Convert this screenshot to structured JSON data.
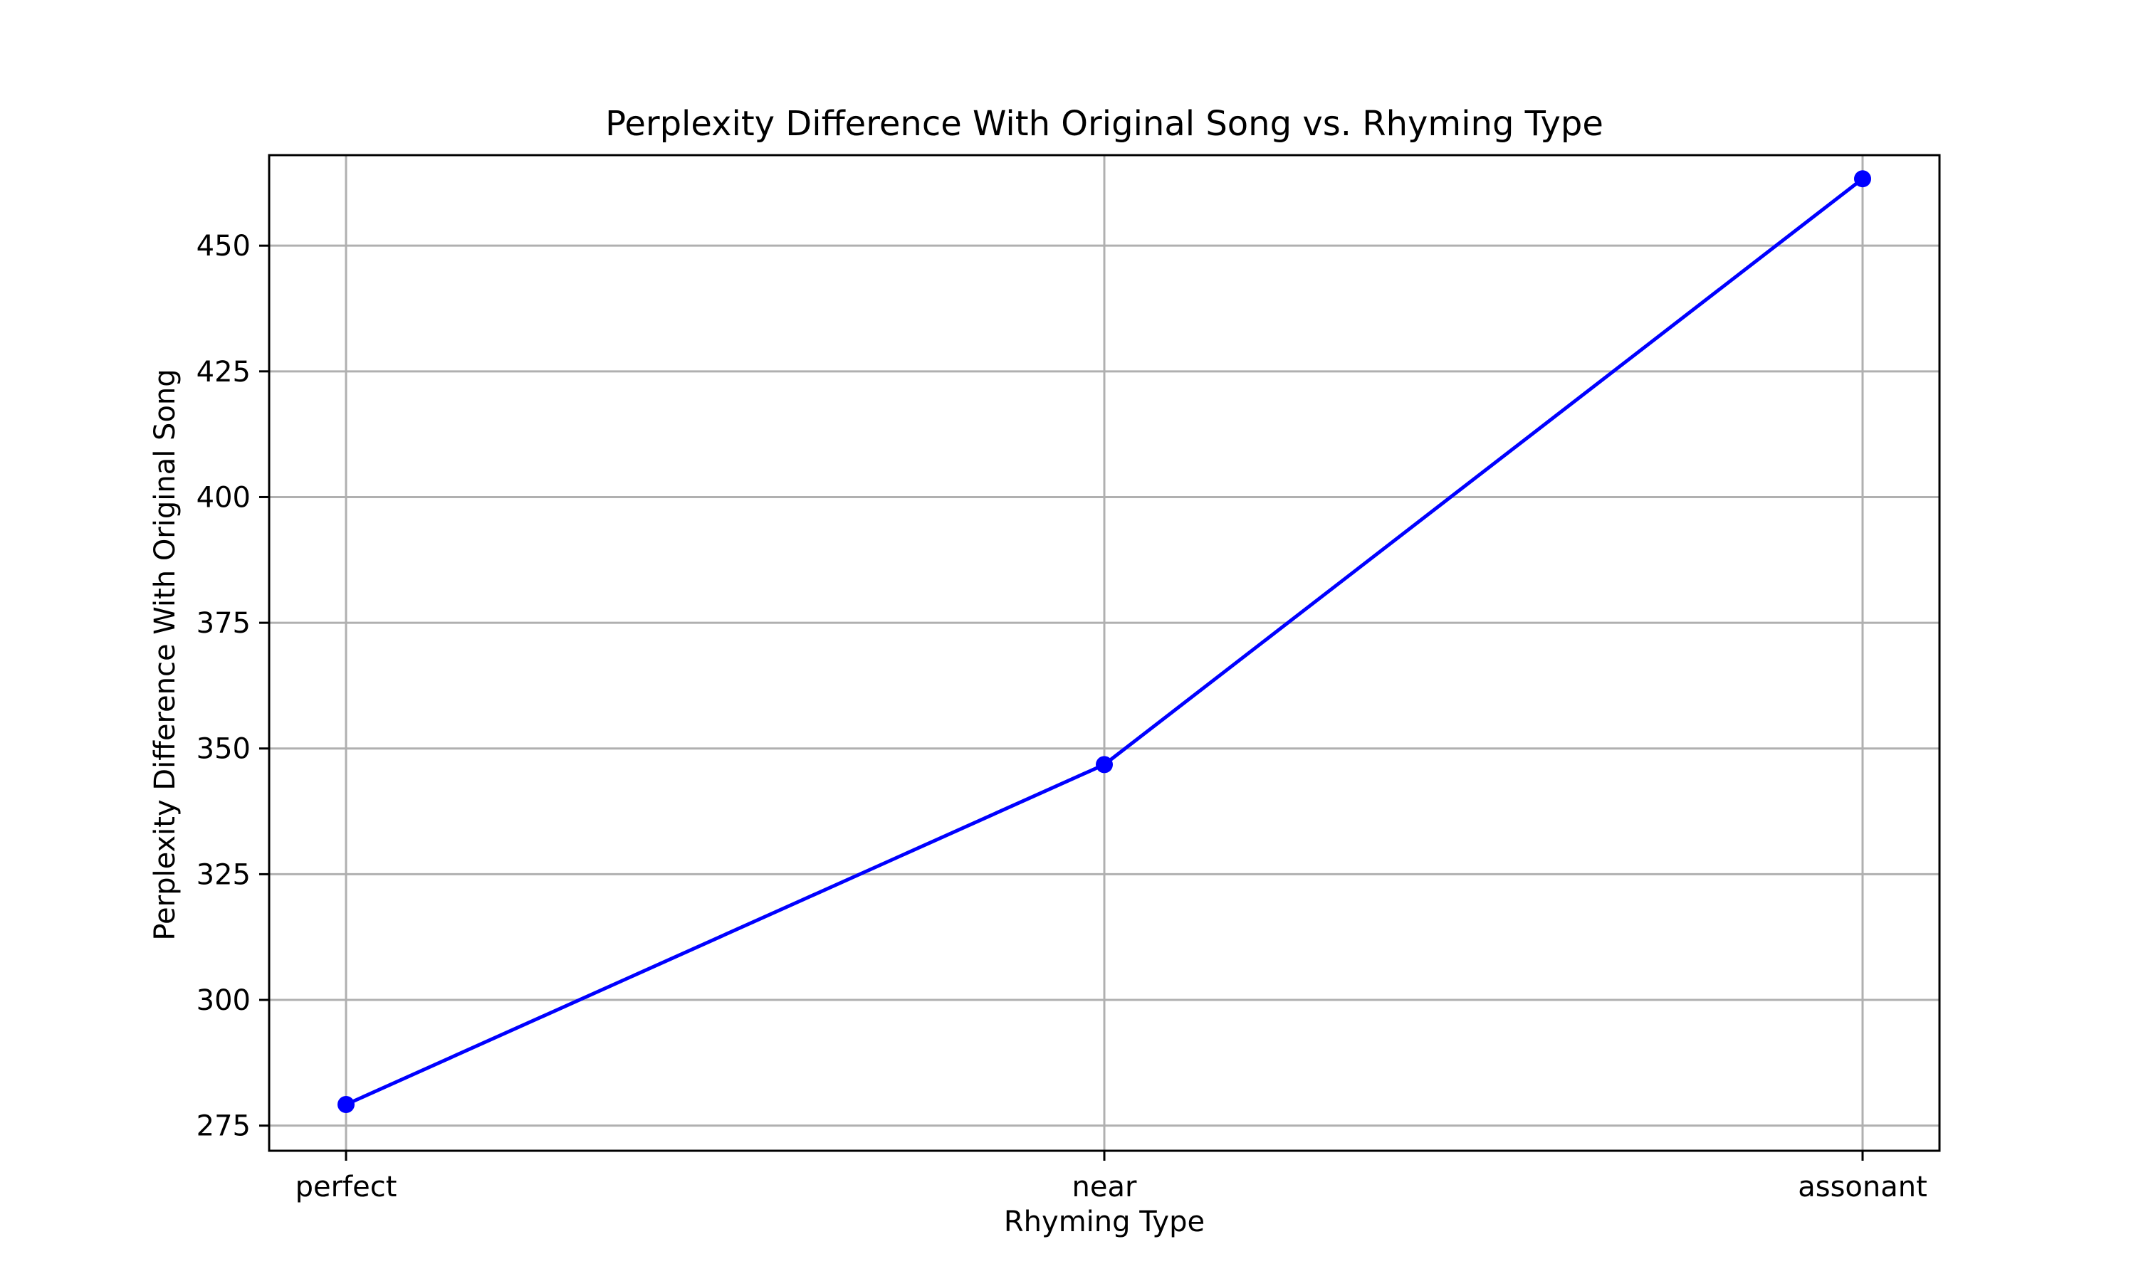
{
  "chart_data": {
    "type": "line",
    "title": "Perplexity Difference With Original Song vs. Rhyming Type",
    "xlabel": "Rhyming Type",
    "ylabel": "Perplexity Difference With Original Song",
    "categories": [
      "perfect",
      "near",
      "assonant"
    ],
    "series": [
      {
        "values": [
          279.2,
          346.8,
          463.3
        ],
        "color": "#0000ff",
        "marker": "circle"
      }
    ],
    "yticks": [
      275,
      300,
      325,
      350,
      375,
      400,
      425,
      450
    ],
    "ylim": [
      270,
      468
    ],
    "grid": true,
    "legend": "none"
  }
}
